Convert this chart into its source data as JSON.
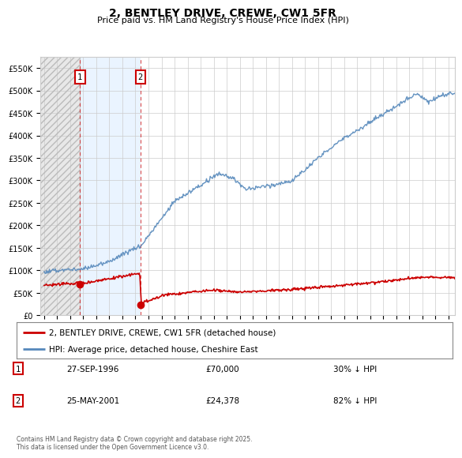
{
  "title": "2, BENTLEY DRIVE, CREWE, CW1 5FR",
  "subtitle": "Price paid vs. HM Land Registry's House Price Index (HPI)",
  "legend_line1": "2, BENTLEY DRIVE, CREWE, CW1 5FR (detached house)",
  "legend_line2": "HPI: Average price, detached house, Cheshire East",
  "annotation1_date": "27-SEP-1996",
  "annotation1_price": "£70,000",
  "annotation1_hpi": "30% ↓ HPI",
  "annotation2_date": "25-MAY-2001",
  "annotation2_price": "£24,378",
  "annotation2_hpi": "82% ↓ HPI",
  "footer": "Contains HM Land Registry data © Crown copyright and database right 2025.\nThis data is licensed under the Open Government Licence v3.0.",
  "red_color": "#cc0000",
  "blue_color": "#5588bb",
  "grid_color": "#cccccc",
  "ylim": [
    0,
    575000
  ],
  "yticks": [
    0,
    50000,
    100000,
    150000,
    200000,
    250000,
    300000,
    350000,
    400000,
    450000,
    500000,
    550000
  ],
  "sale1_x": 1996.75,
  "sale1_y": 70000,
  "sale2_x": 2001.38,
  "sale2_y": 24378,
  "xmin": 1993.7,
  "xmax": 2025.5
}
